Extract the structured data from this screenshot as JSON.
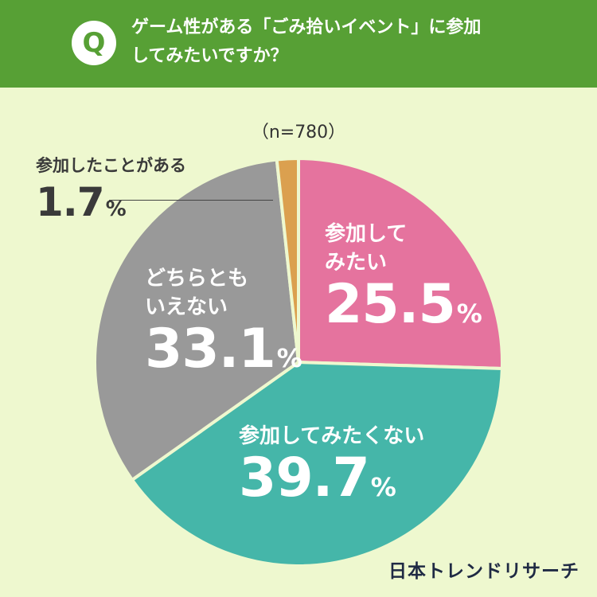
{
  "header": {
    "badge": "Q",
    "question": "ゲーム性がある「ごみ拾いイベント」に参加\nしてみたいですか？"
  },
  "sample_size": "（n=780）",
  "brand": "日本トレンドリサーチ",
  "colors": {
    "header_bg": "#57a035",
    "page_bg": "#eef8cf",
    "want": "#e5739e",
    "not_want": "#45b6a9",
    "neutral": "#999999",
    "participated": "#dba04f"
  },
  "chart_data": {
    "type": "pie",
    "slices": [
      {
        "label": "参加してみたい",
        "value": 25.5,
        "color": "#e5739e"
      },
      {
        "label": "参加してみたくない",
        "value": 39.7,
        "color": "#45b6a9"
      },
      {
        "label": "どちらともいえない",
        "value": 33.1,
        "color": "#999999"
      },
      {
        "label": "参加したことがある",
        "value": 1.7,
        "color": "#dba04f"
      }
    ],
    "display": [
      {
        "name": "参加して\nみたい",
        "value": "25.5",
        "unit": "%"
      },
      {
        "name": "参加してみたくない",
        "value": "39.7",
        "unit": "%"
      },
      {
        "name": "どちらとも\nいえない",
        "value": "33.1",
        "unit": "%"
      },
      {
        "name": "参加したことがある",
        "value": "1.7",
        "unit": "%"
      }
    ],
    "start_angle": "top",
    "direction": "clockwise"
  }
}
